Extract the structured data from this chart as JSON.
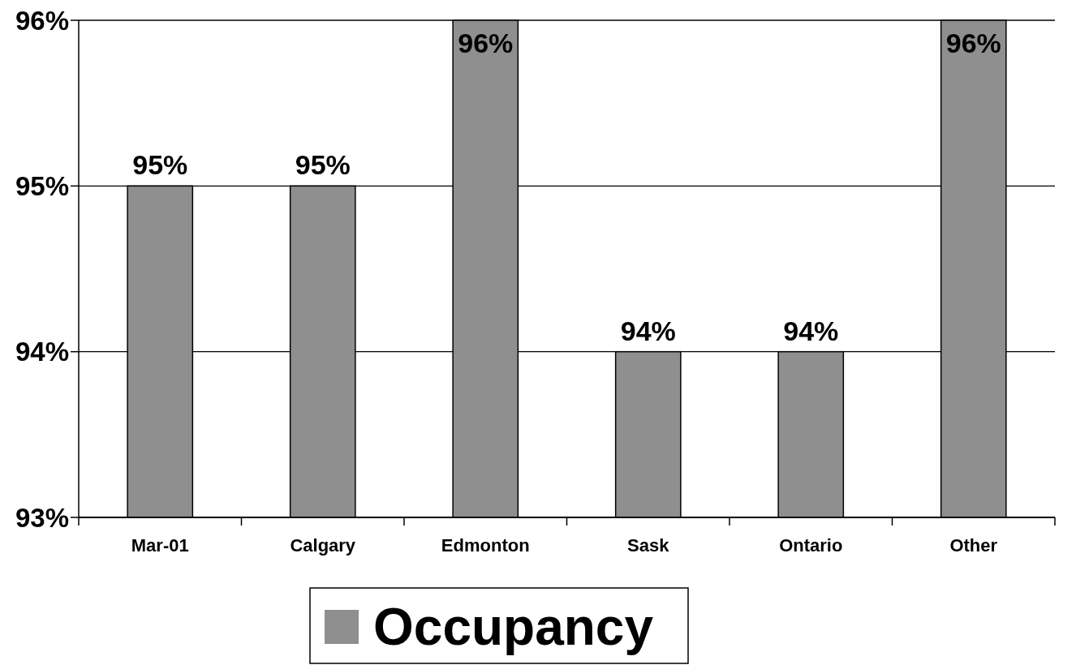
{
  "chart_data": {
    "type": "bar",
    "categories": [
      "Mar-01",
      "Calgary",
      "Edmonton",
      "Sask",
      "Ontario",
      "Other"
    ],
    "series": [
      {
        "name": "Occupancy",
        "color": "#8f8f8f",
        "values": [
          95,
          95,
          96,
          94,
          94,
          96
        ],
        "value_labels": [
          "95%",
          "95%",
          "96%",
          "94%",
          "94%",
          "96%"
        ]
      }
    ],
    "ylim": [
      93,
      96
    ],
    "yticks": [
      {
        "value": 93,
        "label": "93%"
      },
      {
        "value": 94,
        "label": "94%"
      },
      {
        "value": 95,
        "label": "95%"
      },
      {
        "value": 96,
        "label": "96%"
      }
    ],
    "grid": "y",
    "legend": "bottom"
  }
}
